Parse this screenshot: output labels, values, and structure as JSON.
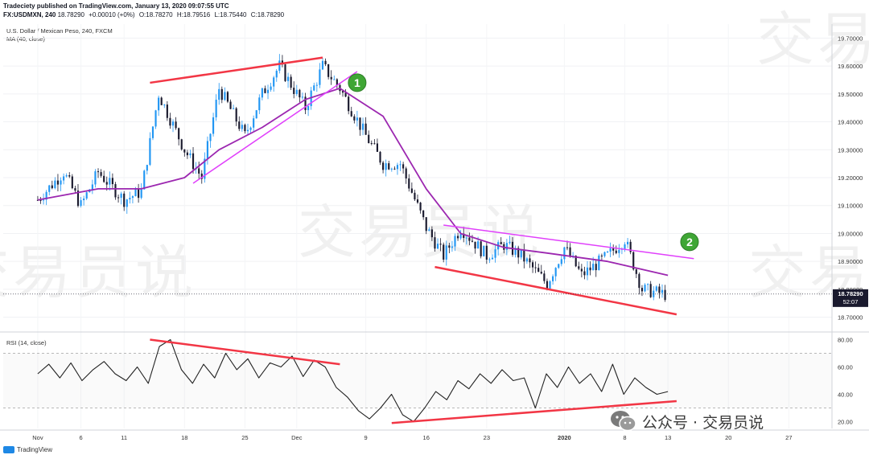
{
  "header": {
    "publisher_line": "Tradeciety published on TradingView.com, January 13, 2020 09:07:55 UTC",
    "symbol": "FX:USDMXN, 240",
    "last": "18.78290",
    "change": "+0.00010 (+0%)",
    "open": "O:18.78270",
    "high": "H:18.79516",
    "low": "L:18.75440",
    "close": "C:18.78290"
  },
  "legend": {
    "title": "U.S. Dollar / Mexican Peso, 240, FXCM",
    "ma": "MA (40, close)",
    "rsi": "RSI (14, close)"
  },
  "price_badge": {
    "value": "18.78290",
    "countdown": "52:07"
  },
  "markers": [
    {
      "label": "1"
    },
    {
      "label": "2"
    }
  ],
  "footer": {
    "brand": "TradingView"
  },
  "watermark": {
    "text": "交易员说"
  },
  "wechat": {
    "text": "公众号 · 交易员说"
  },
  "colors": {
    "up": "#26a69a",
    "down": "#1a1a2e",
    "candle_up": "#2196f3",
    "ma": "#9c27b0",
    "trend_red": "#f23645",
    "trend_pink": "#e040fb",
    "marker": "#3fa635"
  },
  "chart_data": [
    {
      "type": "candlestick",
      "title": "U.S. Dollar / Mexican Peso, 240, FXCM",
      "ylim": [
        18.65,
        19.75
      ],
      "yticks": [
        19.7,
        19.6,
        19.5,
        19.4,
        19.3,
        19.2,
        19.1,
        19.0,
        18.9,
        18.8,
        18.7
      ],
      "ytick_labels": [
        "19.70000",
        "19.60000",
        "19.50000",
        "19.40000",
        "19.30000",
        "19.20000",
        "19.10000",
        "19.00000",
        "18.90000",
        "18.80000",
        "18.70000"
      ],
      "xticks": [
        "Nov",
        "6",
        "11",
        "18",
        "25",
        "Dec",
        "9",
        "16",
        "23",
        "2020",
        "8",
        "13",
        "20",
        "27"
      ],
      "close_path": [
        {
          "t": "Nov 1",
          "y": 19.12
        },
        {
          "t": "Nov 4",
          "y": 19.22
        },
        {
          "t": "Nov 6",
          "y": 19.1
        },
        {
          "t": "Nov 8",
          "y": 19.22
        },
        {
          "t": "Nov 11",
          "y": 19.12
        },
        {
          "t": "Nov 13",
          "y": 19.15
        },
        {
          "t": "Nov 15",
          "y": 19.5
        },
        {
          "t": "Nov 18",
          "y": 19.3
        },
        {
          "t": "Nov 20",
          "y": 19.2
        },
        {
          "t": "Nov 22",
          "y": 19.52
        },
        {
          "t": "Nov 25",
          "y": 19.35
        },
        {
          "t": "Nov 27",
          "y": 19.5
        },
        {
          "t": "Nov 29",
          "y": 19.6
        },
        {
          "t": "Dec 2",
          "y": 19.45
        },
        {
          "t": "Dec 4",
          "y": 19.6
        },
        {
          "t": "Dec 6",
          "y": 19.52
        },
        {
          "t": "Dec 9",
          "y": 19.35
        },
        {
          "t": "Dec 11",
          "y": 19.25
        },
        {
          "t": "Dec 13",
          "y": 19.25
        },
        {
          "t": "Dec 16",
          "y": 19.02
        },
        {
          "t": "Dec 18",
          "y": 18.92
        },
        {
          "t": "Dec 20",
          "y": 19.02
        },
        {
          "t": "Dec 23",
          "y": 18.92
        },
        {
          "t": "Dec 25",
          "y": 18.96
        },
        {
          "t": "Dec 27",
          "y": 18.92
        },
        {
          "t": "Dec 30",
          "y": 18.82
        },
        {
          "t": "Jan 1",
          "y": 18.95
        },
        {
          "t": "Jan 3",
          "y": 18.85
        },
        {
          "t": "Jan 6",
          "y": 18.92
        },
        {
          "t": "Jan 8",
          "y": 18.98
        },
        {
          "t": "Jan 10",
          "y": 18.8
        },
        {
          "t": "Jan 13",
          "y": 18.78
        }
      ],
      "ma_path": [
        {
          "t": "Nov 1",
          "y": 19.12
        },
        {
          "t": "Nov 8",
          "y": 19.16
        },
        {
          "t": "Nov 13",
          "y": 19.16
        },
        {
          "t": "Nov 18",
          "y": 19.2
        },
        {
          "t": "Nov 22",
          "y": 19.3
        },
        {
          "t": "Nov 27",
          "y": 19.38
        },
        {
          "t": "Dec 2",
          "y": 19.48
        },
        {
          "t": "Dec 6",
          "y": 19.52
        },
        {
          "t": "Dec 11",
          "y": 19.42
        },
        {
          "t": "Dec 16",
          "y": 19.16
        },
        {
          "t": "Dec 20",
          "y": 19.0
        },
        {
          "t": "Dec 25",
          "y": 18.95
        },
        {
          "t": "Dec 30",
          "y": 18.93
        },
        {
          "t": "Jan 6",
          "y": 18.9
        },
        {
          "t": "Jan 13",
          "y": 18.85
        }
      ],
      "trendlines": [
        {
          "name": "upper-red",
          "color": "#f23645",
          "from": {
            "t": "Nov 14",
            "y": 19.54
          },
          "to": {
            "t": "Dec 4",
            "y": 19.63
          }
        },
        {
          "name": "rising-pink",
          "color": "#e040fb",
          "from": {
            "t": "Nov 19",
            "y": 19.18
          },
          "to": {
            "t": "Dec 8",
            "y": 19.58
          }
        },
        {
          "name": "falling-pink",
          "color": "#e040fb",
          "from": {
            "t": "Dec 18",
            "y": 19.03
          },
          "to": {
            "t": "Jan 16",
            "y": 18.91
          }
        },
        {
          "name": "lower-red",
          "color": "#f23645",
          "from": {
            "t": "Dec 17",
            "y": 18.88
          },
          "to": {
            "t": "Jan 14",
            "y": 18.71
          }
        }
      ]
    },
    {
      "type": "line",
      "title": "RSI (14, close)",
      "ylim": [
        15,
        85
      ],
      "yticks": [
        80,
        60,
        40,
        20
      ],
      "ytick_labels": [
        "80.00",
        "60.00",
        "40.00",
        "20.00"
      ],
      "levels": [
        70,
        30
      ],
      "series": [
        {
          "values": [
            55,
            62,
            52,
            63,
            50,
            58,
            64,
            55,
            50,
            60,
            48,
            75,
            80,
            58,
            48,
            62,
            52,
            70,
            58,
            66,
            52,
            63,
            60,
            68,
            53,
            65,
            60,
            45,
            38,
            28,
            22,
            30,
            40,
            25,
            20,
            30,
            42,
            36,
            50,
            44,
            55,
            48,
            58,
            50,
            52,
            30,
            55,
            45,
            60,
            48,
            55,
            42,
            62,
            40,
            52,
            45,
            40,
            42
          ]
        }
      ],
      "trendlines": [
        {
          "name": "rsi-upper-red",
          "color": "#f23645",
          "from": {
            "t": "Nov 14",
            "y": 80
          },
          "to": {
            "t": "Dec 6",
            "y": 62
          }
        },
        {
          "name": "rsi-lower-red",
          "color": "#f23645",
          "from": {
            "t": "Dec 12",
            "y": 19
          },
          "to": {
            "t": "Jan 14",
            "y": 35
          }
        }
      ]
    }
  ]
}
